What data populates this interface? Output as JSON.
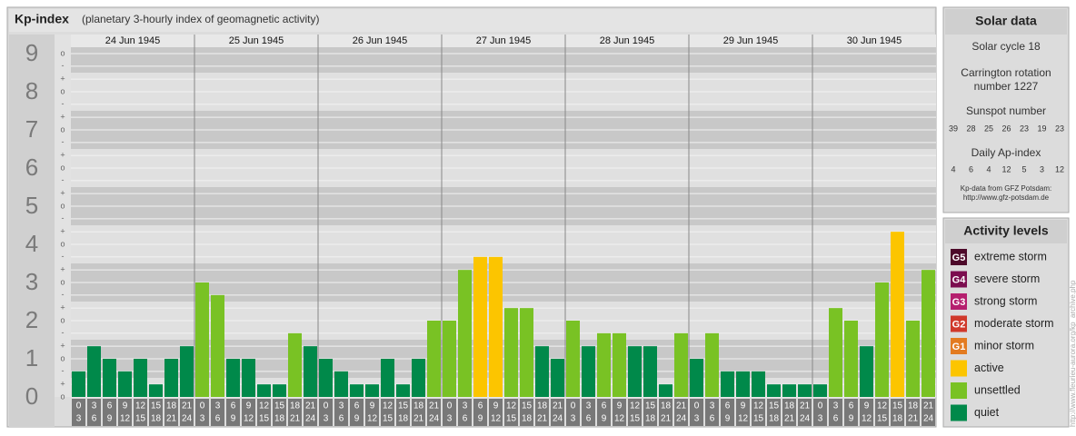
{
  "chart_data": {
    "type": "bar",
    "title": "Kp-index",
    "subtitle": "(planetary 3-hourly index of geomagnetic activity)",
    "days": [
      "24 Jun 1945",
      "25 Jun 1945",
      "26 Jun 1945",
      "27 Jun 1945",
      "28 Jun 1945",
      "29 Jun 1945",
      "30 Jun 1945"
    ],
    "hours": [
      "0",
      "3",
      "6",
      "9",
      "12",
      "15",
      "18",
      "21",
      "24"
    ],
    "values": [
      0.67,
      1.33,
      1,
      0.67,
      1,
      0.33,
      1,
      1.33,
      3,
      2.67,
      1,
      1,
      0.33,
      0.33,
      1.67,
      1.33,
      1,
      0.67,
      0.33,
      0.33,
      1,
      0.33,
      1,
      2,
      2,
      3.33,
      3.67,
      3.67,
      2.33,
      2.33,
      1.33,
      1,
      2,
      1.33,
      1.67,
      1.67,
      1.33,
      1.33,
      0.33,
      1.67,
      1,
      1.67,
      0.67,
      0.67,
      0.67,
      0.33,
      0.33,
      0.33,
      0.33,
      2.33,
      2,
      1.33,
      3,
      4.33,
      2,
      3.33
    ],
    "colors": [
      "#00894a",
      "#00894a",
      "#00894a",
      "#00894a",
      "#00894a",
      "#00894a",
      "#00894a",
      "#00894a",
      "#79c224",
      "#79c224",
      "#00894a",
      "#00894a",
      "#00894a",
      "#00894a",
      "#79c224",
      "#00894a",
      "#00894a",
      "#00894a",
      "#00894a",
      "#00894a",
      "#00894a",
      "#00894a",
      "#00894a",
      "#79c224",
      "#79c224",
      "#79c224",
      "#fcc500",
      "#fcc500",
      "#79c224",
      "#79c224",
      "#00894a",
      "#00894a",
      "#79c224",
      "#00894a",
      "#79c224",
      "#79c224",
      "#00894a",
      "#00894a",
      "#00894a",
      "#79c224",
      "#00894a",
      "#79c224",
      "#00894a",
      "#00894a",
      "#00894a",
      "#00894a",
      "#00894a",
      "#00894a",
      "#00894a",
      "#79c224",
      "#79c224",
      "#00894a",
      "#79c224",
      "#fcc500",
      "#79c224",
      "#79c224"
    ],
    "ylim": [
      0,
      9.5
    ],
    "yticks": [
      0,
      1,
      2,
      3,
      4,
      5,
      6,
      7,
      8,
      9
    ],
    "minor_yticks": [
      {
        "value": 0,
        "label": "o"
      },
      {
        "value": 0.33,
        "label": "+"
      },
      {
        "value": 0.67,
        "label": "-"
      },
      {
        "value": 1,
        "label": "o"
      },
      {
        "value": 1.33,
        "label": "+"
      },
      {
        "value": 1.67,
        "label": "-"
      },
      {
        "value": 2,
        "label": "o"
      },
      {
        "value": 2.33,
        "label": "+"
      },
      {
        "value": 2.67,
        "label": "-"
      },
      {
        "value": 3,
        "label": "o"
      },
      {
        "value": 3.33,
        "label": "+"
      },
      {
        "value": 3.67,
        "label": "-"
      },
      {
        "value": 4,
        "label": "o"
      },
      {
        "value": 4.33,
        "label": "+"
      },
      {
        "value": 4.67,
        "label": "-"
      },
      {
        "value": 5,
        "label": "o"
      },
      {
        "value": 5.33,
        "label": "+"
      },
      {
        "value": 5.67,
        "label": "-"
      },
      {
        "value": 6,
        "label": "o"
      },
      {
        "value": 6.33,
        "label": "+"
      },
      {
        "value": 6.67,
        "label": "-"
      },
      {
        "value": 7,
        "label": "o"
      },
      {
        "value": 7.33,
        "label": "+"
      },
      {
        "value": 7.67,
        "label": "-"
      },
      {
        "value": 8,
        "label": "o"
      },
      {
        "value": 8.33,
        "label": "+"
      },
      {
        "value": 8.67,
        "label": "-"
      },
      {
        "value": 9,
        "label": "o"
      }
    ],
    "grid": true,
    "solar_data": {
      "title": "Solar data",
      "cycle": "Solar cycle 18",
      "carrington": [
        "Carrington rotation",
        "number 1227"
      ],
      "sunspot_label": "Sunspot number",
      "sunspot": [
        39,
        28,
        25,
        26,
        23,
        19,
        23
      ],
      "ap_label": "Daily Ap-index",
      "ap": [
        4,
        6,
        4,
        12,
        5,
        3,
        12
      ],
      "source": [
        "Kp-data from GFZ Potsdam:",
        "http://www.gfz-potsdam.de"
      ]
    },
    "legend": {
      "title": "Activity levels",
      "items": [
        {
          "code": "G5",
          "name": "extreme storm",
          "color": "#4d0a2a"
        },
        {
          "code": "G4",
          "name": "severe storm",
          "color": "#7c0d4f"
        },
        {
          "code": "G3",
          "name": "strong storm",
          "color": "#b51f6e"
        },
        {
          "code": "G2",
          "name": "moderate storm",
          "color": "#d0392b"
        },
        {
          "code": "G1",
          "name": "minor storm",
          "color": "#e37b20"
        },
        {
          "name": "active",
          "color": "#fcc500"
        },
        {
          "name": "unsettled",
          "color": "#79c224"
        },
        {
          "name": "quiet",
          "color": "#00894a"
        }
      ]
    },
    "watermark": "http://www.fleurieu-aurora.org/kp_archive.php"
  }
}
